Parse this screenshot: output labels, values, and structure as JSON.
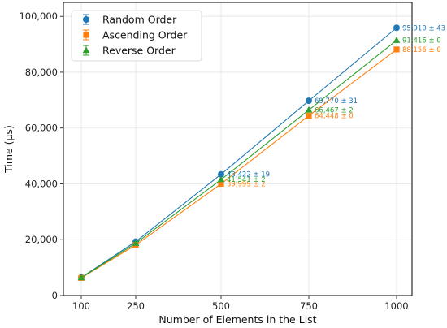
{
  "chart_data": {
    "type": "line",
    "xlabel": "Number of Elements in the List",
    "ylabel": "Time (µs)",
    "x": [
      100,
      250,
      500,
      750,
      1000
    ],
    "x_tick_labels": [
      "100",
      "250",
      "500",
      "750",
      "1000"
    ],
    "ylim": [
      0,
      105000
    ],
    "y_ticks": [
      0,
      20000,
      40000,
      60000,
      80000,
      100000
    ],
    "y_tick_labels": [
      "0",
      "20,000",
      "40,000",
      "60,000",
      "80,000",
      "100,000"
    ],
    "grid": true,
    "legend_position": "top-left",
    "series": [
      {
        "name": "Random Order",
        "color": "#1f77b4",
        "marker": "circle",
        "values": [
          6500,
          19300,
          43422,
          69770,
          95910
        ],
        "labels": [
          "",
          "",
          "43,422 ± 19",
          "69,770 ± 31",
          "95,910 ± 43"
        ]
      },
      {
        "name": "Ascending Order",
        "color": "#ff7f0e",
        "marker": "square",
        "values": [
          6300,
          18100,
          39999,
          64448,
          88156
        ],
        "labels": [
          "",
          "",
          "39,999 ± 2",
          "64,448 ± 0",
          "88,156 ± 0"
        ]
      },
      {
        "name": "Reverse Order",
        "color": "#2ca02c",
        "marker": "triangle",
        "values": [
          6400,
          18700,
          41541,
          66467,
          91416
        ],
        "labels": [
          "",
          "",
          "41,541 ± 2",
          "66,467 ± 2",
          "91,416 ± 0"
        ]
      }
    ]
  }
}
